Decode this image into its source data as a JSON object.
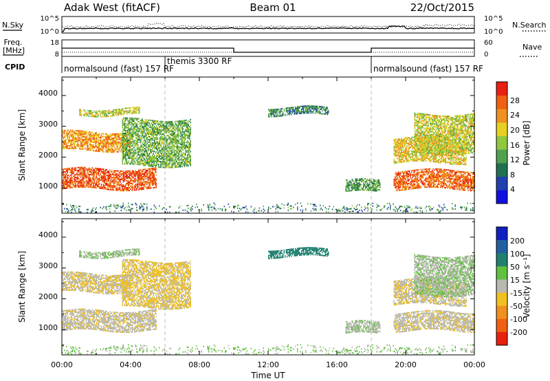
{
  "header": {
    "radar": "Adak West (fitACF)",
    "beam": "Beam 01",
    "date": "22/Oct/2015"
  },
  "noise_panel": {
    "left_label": "N.Sky",
    "right_label": "N.Search",
    "left_ticks": [
      "10^5",
      "10^0"
    ],
    "right_ticks": [
      "10^5",
      "10^0"
    ]
  },
  "freq_panel": {
    "left_label_line1": "Freq.",
    "left_label_line2": "[MHz]",
    "right_label": "Nave",
    "left_ticks": [
      "18",
      "8"
    ],
    "right_ticks": [
      "60",
      "0"
    ],
    "freq_steps": [
      {
        "from": 0,
        "to": 10,
        "value": 13
      },
      {
        "from": 10,
        "to": 18,
        "value": 10.5
      },
      {
        "from": 18,
        "to": 24,
        "value": 13
      }
    ]
  },
  "cpid": {
    "label": "CPID",
    "modes": [
      {
        "name": "normalsound (fast) 157 RF"
      },
      {
        "name": "themis 3300 RF"
      },
      {
        "name": "normalsound (fast) 157 RF"
      }
    ],
    "boundaries_hours": [
      6,
      18
    ]
  },
  "power_panel": {
    "ylabel": "Slant Range [km]",
    "yticks": [
      "1000",
      "2000",
      "3000",
      "4000"
    ],
    "cbar_label": "Power [dB]",
    "cbar_ticks": [
      "4",
      "8",
      "12",
      "16",
      "20",
      "24",
      "28"
    ],
    "cbar_colors": [
      "#1010e0",
      "#2040b0",
      "#207050",
      "#50a050",
      "#90c840",
      "#e8d020",
      "#f09020",
      "#f06010",
      "#e82010"
    ]
  },
  "velocity_panel": {
    "ylabel": "Slant Range [km]",
    "yticks": [
      "1000",
      "2000",
      "3000",
      "4000"
    ],
    "cbar_label": "Velocity [m s⁻¹]",
    "cbar_ticks": [
      "200",
      "100",
      "50",
      "15",
      "-15",
      "-50",
      "-100",
      "-200"
    ],
    "cbar_colors": [
      "#1020c0",
      "#2060a0",
      "#208070",
      "#60c040",
      "#b8b8b0",
      "#f0c020",
      "#f09020",
      "#f06010",
      "#e82010"
    ]
  },
  "xaxis": {
    "label": "Time UT",
    "ticks": [
      "00:00",
      "04:00",
      "08:00",
      "12:00",
      "16:00",
      "20:00",
      "00:00"
    ]
  },
  "chart_data": {
    "type": "heatmap",
    "title": "Adak West (fitACF) Beam 01 22/Oct/2015",
    "xlabel": "Time UT",
    "ylabel": "Slant Range [km]",
    "xlim_hours": [
      0,
      24
    ],
    "ylim_km": [
      180,
      4600
    ],
    "panels": [
      "Power [dB]",
      "Velocity [m s⁻¹]"
    ],
    "power_cbar_range_db": [
      0,
      32
    ],
    "velocity_cbar_range": [
      -250,
      250
    ],
    "echo_regions": [
      {
        "t0": 0.0,
        "t1": 5.5,
        "r0": 950,
        "r1": 1600,
        "power_db": 27,
        "velocity": -5
      },
      {
        "t0": 0.0,
        "t1": 4.0,
        "r0": 2200,
        "r1": 2800,
        "power_db": 23,
        "velocity": -10
      },
      {
        "t0": 1.0,
        "t1": 4.5,
        "r0": 3350,
        "r1": 3550,
        "power_db": 18,
        "velocity": 10
      },
      {
        "t0": 3.5,
        "t1": 7.5,
        "r0": 1700,
        "r1": 3200,
        "power_db": 14,
        "velocity": -20
      },
      {
        "t0": 16.5,
        "t1": 18.5,
        "r0": 850,
        "r1": 1250,
        "power_db": 12,
        "velocity": 5
      },
      {
        "t0": 19.3,
        "t1": 24.0,
        "r0": 950,
        "r1": 1550,
        "power_db": 26,
        "velocity": -5
      },
      {
        "t0": 19.3,
        "t1": 23.5,
        "r0": 1800,
        "r1": 2600,
        "power_db": 20,
        "velocity": -8
      },
      {
        "t0": 20.5,
        "t1": 24.0,
        "r0": 2100,
        "r1": 3400,
        "power_db": 18,
        "velocity": 10
      },
      {
        "t0": 12.0,
        "t1": 15.5,
        "r0": 3350,
        "r1": 3600,
        "power_db": 10,
        "velocity": 80
      },
      {
        "t0": 0.0,
        "t1": 24.0,
        "r0": 200,
        "r1": 450,
        "power_db": 10,
        "velocity": 20
      }
    ]
  }
}
